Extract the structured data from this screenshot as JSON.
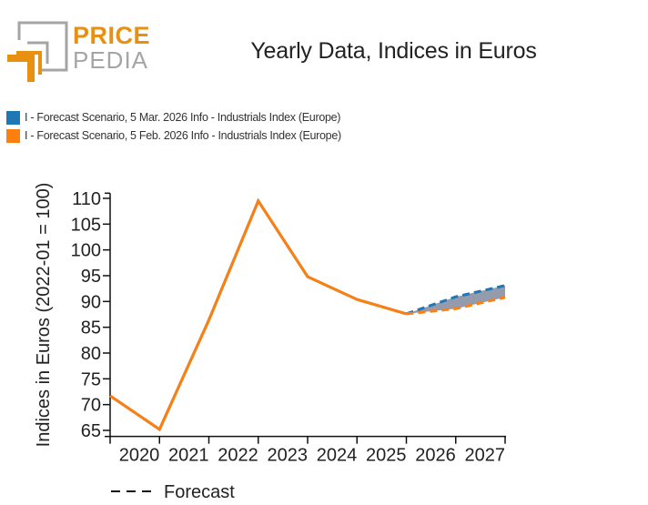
{
  "logo": {
    "line1": "PRICE",
    "line2": "PEDIA",
    "colors": {
      "accent": "#e8900f",
      "gray": "#a5a5a5"
    }
  },
  "chart_data": {
    "type": "line",
    "title": "Yearly Data, Indices in Euros",
    "xlabel": "",
    "ylabel": "Indices in Euros (2022-01 = 100)",
    "x": [
      2019,
      2020,
      2021,
      2022,
      2023,
      2024,
      2025,
      2026,
      2027
    ],
    "x_tick_labels": [
      "2020",
      "2021",
      "2022",
      "2023",
      "2024",
      "2025",
      "2026",
      "2027"
    ],
    "y_ticks": [
      65,
      70,
      75,
      80,
      85,
      90,
      95,
      100,
      105,
      110
    ],
    "ylim": [
      64,
      111
    ],
    "xlim": [
      2019,
      2027
    ],
    "grid": false,
    "legend_position": "top-left",
    "forecast_start": 2025,
    "series": [
      {
        "name": "I - Forecast Scenario, 5 Mar. 2026 Info - Industrials Index (Europe)",
        "color": "#1f77b4",
        "values": [
          71.7,
          65.2,
          86.4,
          109.5,
          94.8,
          90.4,
          87.6,
          90.9,
          93.1
        ]
      },
      {
        "name": "I - Forecast Scenario, 5 Feb. 2026 Info - Industrials Index (Europe)",
        "color": "#ff7f0e",
        "values": [
          71.7,
          65.2,
          86.4,
          109.5,
          94.8,
          90.4,
          87.6,
          88.6,
          90.8
        ]
      }
    ],
    "band_color": "#8e96a8",
    "annotation": "Forecast"
  }
}
